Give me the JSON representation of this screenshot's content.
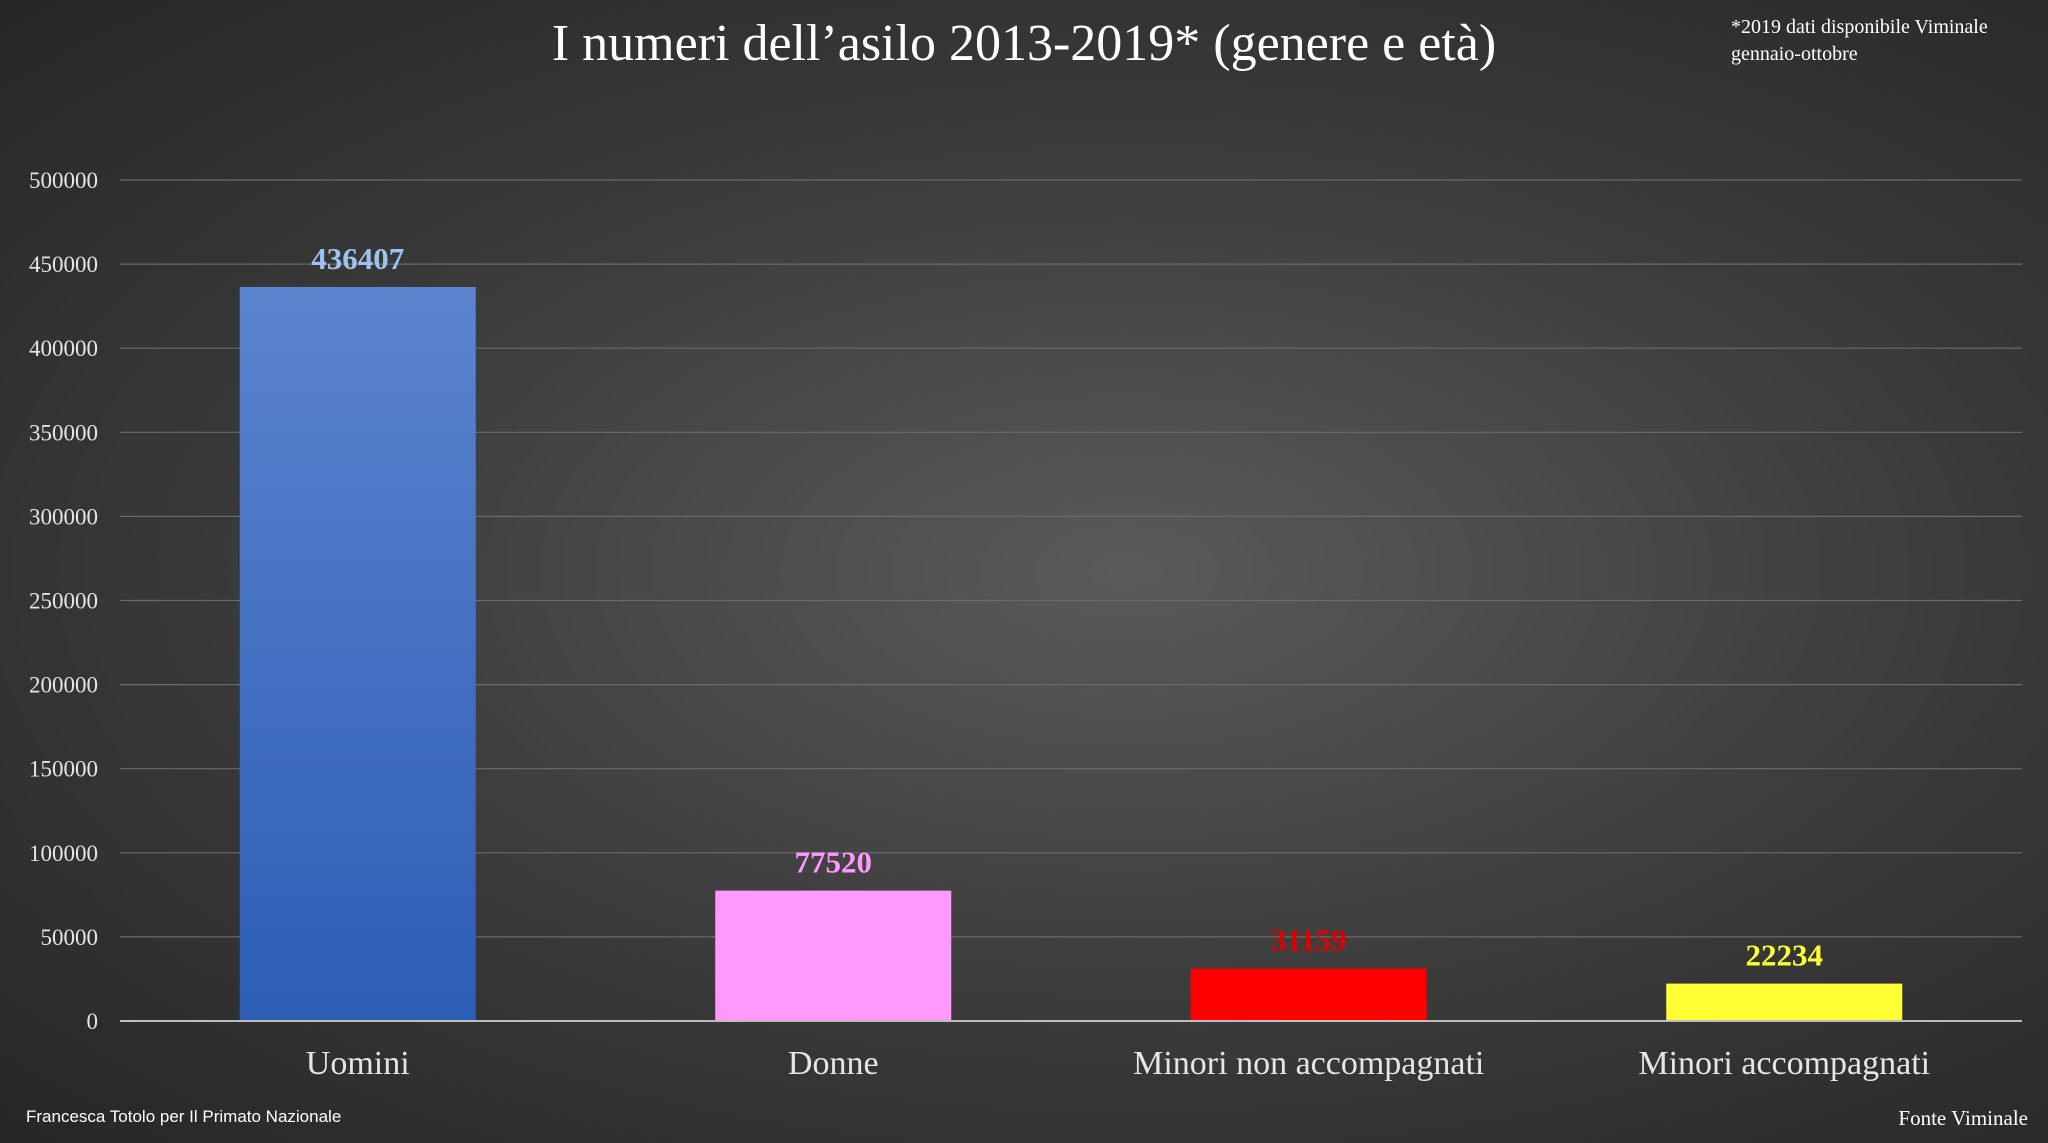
{
  "title": "I numeri dell’asilo 2013-2019* (genere e età)",
  "note_line1": "*2019 dati disponibile Viminale",
  "note_line2": "gennaio-ottobre",
  "credit": "Francesca Totolo per Il Primato Nazionale",
  "source": "Fonte Viminale",
  "chart_data": {
    "type": "bar",
    "title": "I numeri dell’asilo 2013-2019* (genere e età)",
    "categories": [
      "Uomini",
      "Donne",
      "Minori non accompagnati",
      "Minori accompagnati"
    ],
    "values": [
      436407,
      77520,
      31159,
      22234
    ],
    "colors": [
      "#3f6fc8",
      "#ff99ff",
      "#ff0000",
      "#ffff33"
    ],
    "label_colors": [
      "#9dc3ee",
      "#ff99ff",
      "#e00000",
      "#ffff33"
    ],
    "ylim": [
      0,
      500000
    ],
    "yticks": [
      0,
      50000,
      100000,
      150000,
      200000,
      250000,
      300000,
      350000,
      400000,
      450000,
      500000
    ],
    "grid": true,
    "legend": "none"
  }
}
